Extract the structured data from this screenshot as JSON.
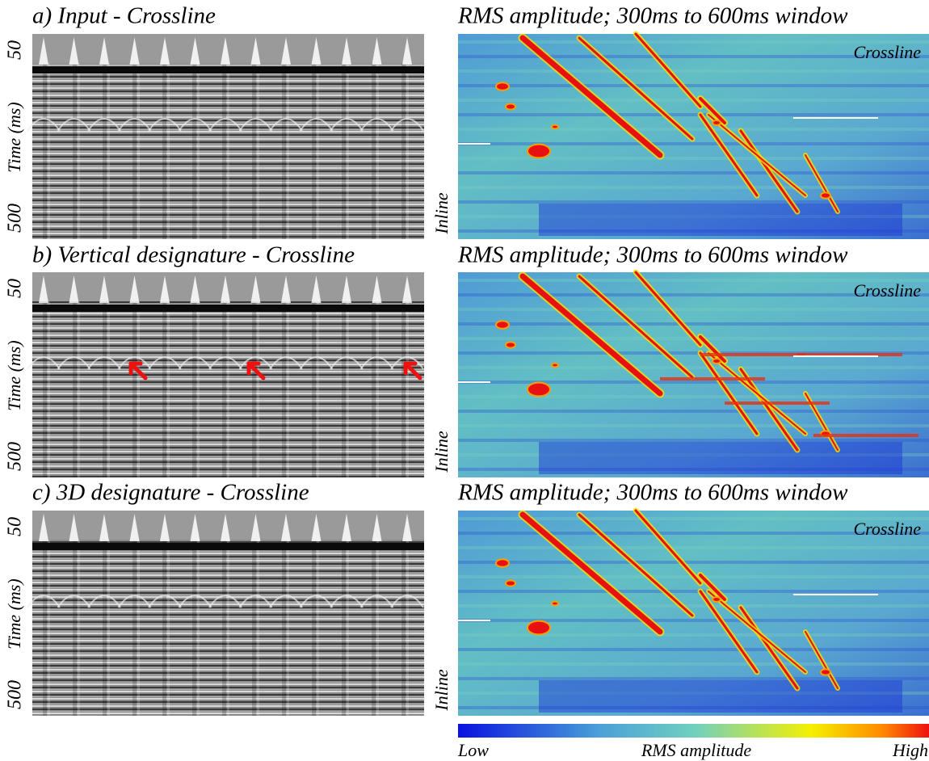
{
  "panels": [
    {
      "left_title": "a) Input - Crossline",
      "right_title": "RMS amplitude; 300ms to 600ms window",
      "y_label": "Time (ms)",
      "y_ticks": [
        50,
        500
      ],
      "map_x_label": "Crossline",
      "map_y_label": "Inline"
    },
    {
      "left_title": "b) Vertical designature - Crossline",
      "right_title": "RMS amplitude; 300ms to 600ms window",
      "y_label": "Time (ms)",
      "y_ticks": [
        50,
        500
      ],
      "map_x_label": "Crossline",
      "map_y_label": "Inline"
    },
    {
      "left_title": "c) 3D designature - Crossline",
      "right_title": "RMS amplitude; 300ms to 600ms window",
      "y_label": "Time (ms)",
      "y_ticks": [
        50,
        500
      ],
      "map_x_label": "Crossline",
      "map_y_label": "Inline"
    }
  ],
  "colorbar": {
    "low": "Low",
    "label": "RMS amplitude",
    "high": "High"
  }
}
